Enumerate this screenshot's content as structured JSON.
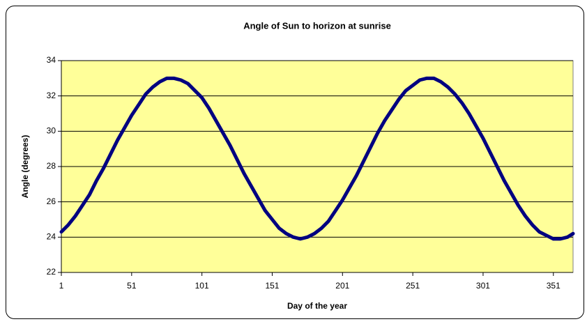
{
  "chart_data": {
    "type": "line",
    "title": "Angle of Sun to horizon at sunrise",
    "x_label": "Day of the year",
    "y_label": "Angle (degrees)",
    "x": [
      1,
      6,
      11,
      16,
      21,
      26,
      31,
      36,
      41,
      46,
      51,
      56,
      61,
      66,
      71,
      76,
      81,
      86,
      91,
      96,
      101,
      106,
      111,
      116,
      121,
      126,
      131,
      136,
      141,
      146,
      151,
      156,
      161,
      166,
      171,
      176,
      181,
      186,
      191,
      196,
      201,
      206,
      211,
      216,
      221,
      226,
      231,
      236,
      241,
      246,
      251,
      256,
      261,
      266,
      271,
      276,
      281,
      286,
      291,
      296,
      301,
      306,
      311,
      316,
      321,
      326,
      331,
      336,
      341,
      346,
      351,
      356,
      361,
      365
    ],
    "values": [
      24.3,
      24.7,
      25.2,
      25.8,
      26.4,
      27.2,
      27.9,
      28.7,
      29.5,
      30.2,
      30.9,
      31.5,
      32.1,
      32.5,
      32.8,
      33.0,
      33.0,
      32.9,
      32.7,
      32.3,
      31.9,
      31.3,
      30.6,
      29.9,
      29.2,
      28.4,
      27.6,
      26.9,
      26.2,
      25.5,
      25.0,
      24.5,
      24.2,
      24.0,
      23.9,
      24.0,
      24.2,
      24.5,
      24.9,
      25.5,
      26.1,
      26.8,
      27.5,
      28.3,
      29.1,
      29.9,
      30.6,
      31.2,
      31.8,
      32.3,
      32.6,
      32.9,
      33.0,
      33.0,
      32.8,
      32.5,
      32.1,
      31.6,
      31.0,
      30.3,
      29.6,
      28.8,
      28.0,
      27.2,
      26.5,
      25.8,
      25.2,
      24.7,
      24.3,
      24.1,
      23.9,
      23.9,
      24.0,
      24.2
    ],
    "color": "#000080",
    "plot_background": "#ffff99",
    "xlim": [
      1,
      365
    ],
    "xticks": [
      1,
      51,
      101,
      151,
      201,
      251,
      301,
      351
    ],
    "ylim": [
      22,
      34
    ],
    "yticks": [
      22,
      24,
      26,
      28,
      30,
      32,
      34
    ],
    "grid": true
  }
}
